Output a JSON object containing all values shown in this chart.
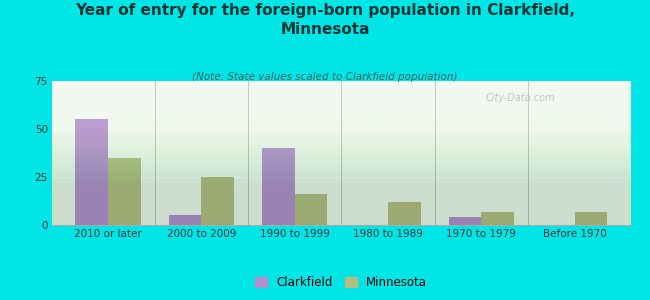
{
  "title": "Year of entry for the foreign-born population in Clarkfield,\nMinnesota",
  "subtitle": "(Note: State values scaled to Clarkfield population)",
  "categories": [
    "2010 or later",
    "2000 to 2009",
    "1990 to 1999",
    "1980 to 1989",
    "1970 to 1979",
    "Before 1970"
  ],
  "clarkfield_values": [
    55,
    5,
    40,
    0,
    4,
    0
  ],
  "minnesota_values": [
    35,
    25,
    16,
    12,
    7,
    7
  ],
  "clarkfield_color": "#b48ecf",
  "minnesota_color": "#b5bc82",
  "title_color": "#003333",
  "subtitle_color": "#336666",
  "background_color": "#00e5e5",
  "plot_bg": "#e8f5e0",
  "ylim": [
    0,
    75
  ],
  "yticks": [
    0,
    25,
    50,
    75
  ],
  "bar_width": 0.35,
  "title_fontsize": 11,
  "subtitle_fontsize": 7.5,
  "tick_fontsize": 7.5,
  "legend_fontsize": 8.5
}
